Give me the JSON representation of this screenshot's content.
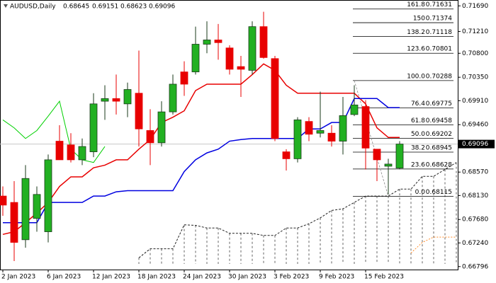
{
  "chart_data": {
    "type": "candlestick",
    "title": "AUDUSD,Daily",
    "categories": [
      "2 Jan 2023",
      null,
      null,
      null,
      "6 Jan 2023",
      null,
      null,
      null,
      "12 Jan 2023",
      null,
      null,
      null,
      "18 Jan 2023",
      null,
      null,
      null,
      "24 Jan 2023",
      null,
      null,
      null,
      "30 Jan 2023",
      null,
      null,
      null,
      "3 Feb 2023",
      null,
      null,
      null,
      "9 Feb 2023",
      null,
      null,
      null,
      "15 Feb 2023",
      null,
      null,
      null,
      null,
      null,
      null,
      null,
      null
    ],
    "open": [
      0.6812,
      0.68,
      0.673,
      0.677,
      0.6745,
      0.6915,
      0.6908,
      0.688,
      0.6895,
      0.699,
      0.6995,
      0.6985,
      0.7005,
      0.6935,
      0.6912,
      0.697,
      0.7045,
      0.7045,
      0.7097,
      0.7105,
      0.709,
      0.7055,
      0.7048,
      0.713,
      0.707,
      0.6895,
      0.6882,
      0.6952,
      0.693,
      0.693,
      0.6915,
      0.6965,
      0.698,
      0.69,
      0.6868,
      0.68645,
      null,
      null,
      null,
      null,
      null
    ],
    "high": [
      0.683,
      0.684,
      0.687,
      0.683,
      0.689,
      0.6945,
      0.693,
      0.692,
      0.7005,
      0.702,
      0.704,
      0.7025,
      0.7085,
      0.6975,
      0.699,
      0.704,
      0.7065,
      0.713,
      0.714,
      0.7135,
      0.7095,
      0.7075,
      0.714,
      0.7158,
      0.7075,
      0.69,
      0.696,
      0.696,
      0.7008,
      0.6945,
      0.6998,
      0.702,
      0.6992,
      0.69,
      0.6882,
      0.69151,
      null,
      null,
      null,
      null,
      null
    ],
    "low": [
      0.6775,
      0.669,
      0.6715,
      0.6745,
      0.6725,
      0.6885,
      0.6875,
      0.687,
      0.6885,
      0.6955,
      0.6965,
      0.696,
      0.6905,
      0.687,
      0.6905,
      0.6965,
      0.7,
      0.704,
      0.708,
      0.7068,
      0.704,
      0.6998,
      0.704,
      0.707,
      0.6915,
      0.686,
      0.6875,
      0.6915,
      0.6922,
      0.6905,
      0.689,
      0.6962,
      0.6862,
      0.684,
      0.6815,
      0.68623,
      null,
      null,
      null,
      null,
      null
    ],
    "close": [
      0.6795,
      0.6725,
      0.6845,
      0.6815,
      0.688,
      0.688,
      0.688,
      0.6905,
      0.6985,
      0.6995,
      0.699,
      0.7012,
      0.6938,
      0.6912,
      0.697,
      0.7022,
      0.7022,
      0.7097,
      0.7105,
      0.71,
      0.705,
      0.705,
      0.713,
      0.7072,
      0.692,
      0.6882,
      0.6955,
      0.6928,
      0.6935,
      0.6915,
      0.6963,
      0.6983,
      0.6902,
      0.688,
      0.6872,
      0.69096,
      null,
      null,
      null,
      null,
      null
    ],
    "up_color": "#22b022",
    "down_color": "#e80000",
    "lines": [
      {
        "color": "#e80000",
        "width": 1.5,
        "values": [
          0.674,
          0.6745,
          0.6762,
          0.678,
          0.68,
          0.683,
          0.6848,
          0.6848,
          0.6865,
          0.687,
          0.688,
          0.688,
          0.69,
          0.6918,
          0.695,
          0.696,
          0.6972,
          0.701,
          0.7022,
          0.7022,
          0.7022,
          0.7022,
          0.704,
          0.706,
          0.7048,
          0.702,
          0.7005,
          0.7005,
          0.7005,
          0.7005,
          0.7005,
          0.7005,
          0.6985,
          0.694,
          0.6922,
          0.6922,
          null,
          null,
          null,
          null,
          null
        ]
      },
      {
        "color": "#0000e0",
        "width": 1.5,
        "values": [
          0.6762,
          0.6762,
          0.6762,
          0.6762,
          0.68,
          0.68,
          0.68,
          0.68,
          0.6812,
          0.6812,
          0.682,
          0.6822,
          0.6822,
          0.6822,
          0.6822,
          0.6822,
          0.6858,
          0.688,
          0.6893,
          0.69,
          0.6915,
          0.6918,
          0.692,
          0.692,
          0.692,
          0.692,
          0.692,
          0.6938,
          0.6938,
          0.695,
          0.695,
          0.6995,
          0.6995,
          0.6995,
          0.6978,
          0.6978,
          null,
          null,
          null,
          null,
          null
        ]
      },
      {
        "color": "#00d000",
        "width": 1,
        "values": [
          0.6955,
          0.694,
          0.692,
          0.6935,
          0.6962,
          0.699,
          0.69,
          0.688,
          0.6875,
          0.6905,
          null,
          null,
          null,
          null,
          null,
          null,
          null,
          null,
          null,
          null,
          null,
          null,
          null,
          null,
          null,
          null,
          null,
          null,
          null,
          null,
          null,
          null,
          null,
          null,
          null,
          null,
          null,
          null,
          null,
          null,
          null
        ]
      }
    ],
    "cloud_top": [
      null,
      null,
      null,
      null,
      null,
      null,
      null,
      null,
      null,
      null,
      null,
      null,
      0.6696,
      0.6713,
      0.6713,
      0.6713,
      0.6758,
      0.6757,
      0.6752,
      0.6752,
      0.6742,
      0.6742,
      0.6742,
      0.6738,
      0.6738,
      0.6752,
      0.6752,
      0.676,
      0.6771,
      0.6785,
      0.6788,
      0.68,
      0.6812,
      0.6812,
      0.6812,
      0.6825,
      0.6825,
      0.6849,
      0.6849,
      0.6862,
      0.6875
    ],
    "cloud_color": "#222222",
    "span_b": [
      null,
      null,
      null,
      null,
      null,
      null,
      null,
      null,
      null,
      null,
      null,
      null,
      null,
      null,
      null,
      null,
      null,
      null,
      null,
      null,
      null,
      null,
      null,
      null,
      null,
      null,
      null,
      null,
      null,
      null,
      null,
      null,
      null,
      null,
      null,
      null,
      0.6705,
      0.6725,
      0.6735,
      0.6735,
      0.6735
    ],
    "span_b_color": "#ff8c2a",
    "fib_levels": [
      {
        "ratio": "161.8",
        "price": 0.71631
      },
      {
        "ratio": "150",
        "price": 0.71374
      },
      {
        "ratio": "138.2",
        "price": 0.71118
      },
      {
        "ratio": "123.6",
        "price": 0.70801
      },
      {
        "ratio": "100.0",
        "price": 0.70288
      },
      {
        "ratio": "76.4",
        "price": 0.69775
      },
      {
        "ratio": "61.8",
        "price": 0.69458
      },
      {
        "ratio": "50.0",
        "price": 0.69202
      },
      {
        "ratio": "38.2",
        "price": 0.68945
      },
      {
        "ratio": "23.6",
        "price": 0.68628
      },
      {
        "ratio": "0.0",
        "price": 0.68115
      }
    ],
    "ylim": [
      0.6674,
      0.718
    ],
    "yticks": [
      {
        "value": 0.7169,
        "label": "0.71690"
      },
      {
        "value": 0.7121,
        "label": "0.71210"
      },
      {
        "value": 0.708,
        "label": "0.70800"
      },
      {
        "value": 0.7035,
        "label": "0.70350"
      },
      {
        "value": 0.6991,
        "label": "0.69910"
      },
      {
        "value": 0.6946,
        "label": "0.69460"
      },
      {
        "value": 0.6857,
        "label": "0.68570"
      },
      {
        "value": 0.6813,
        "label": "0.68130"
      },
      {
        "value": 0.6768,
        "label": "0.67680"
      },
      {
        "value": 0.6724,
        "label": "0.67240"
      },
      0.66796
    ]
  }
}
